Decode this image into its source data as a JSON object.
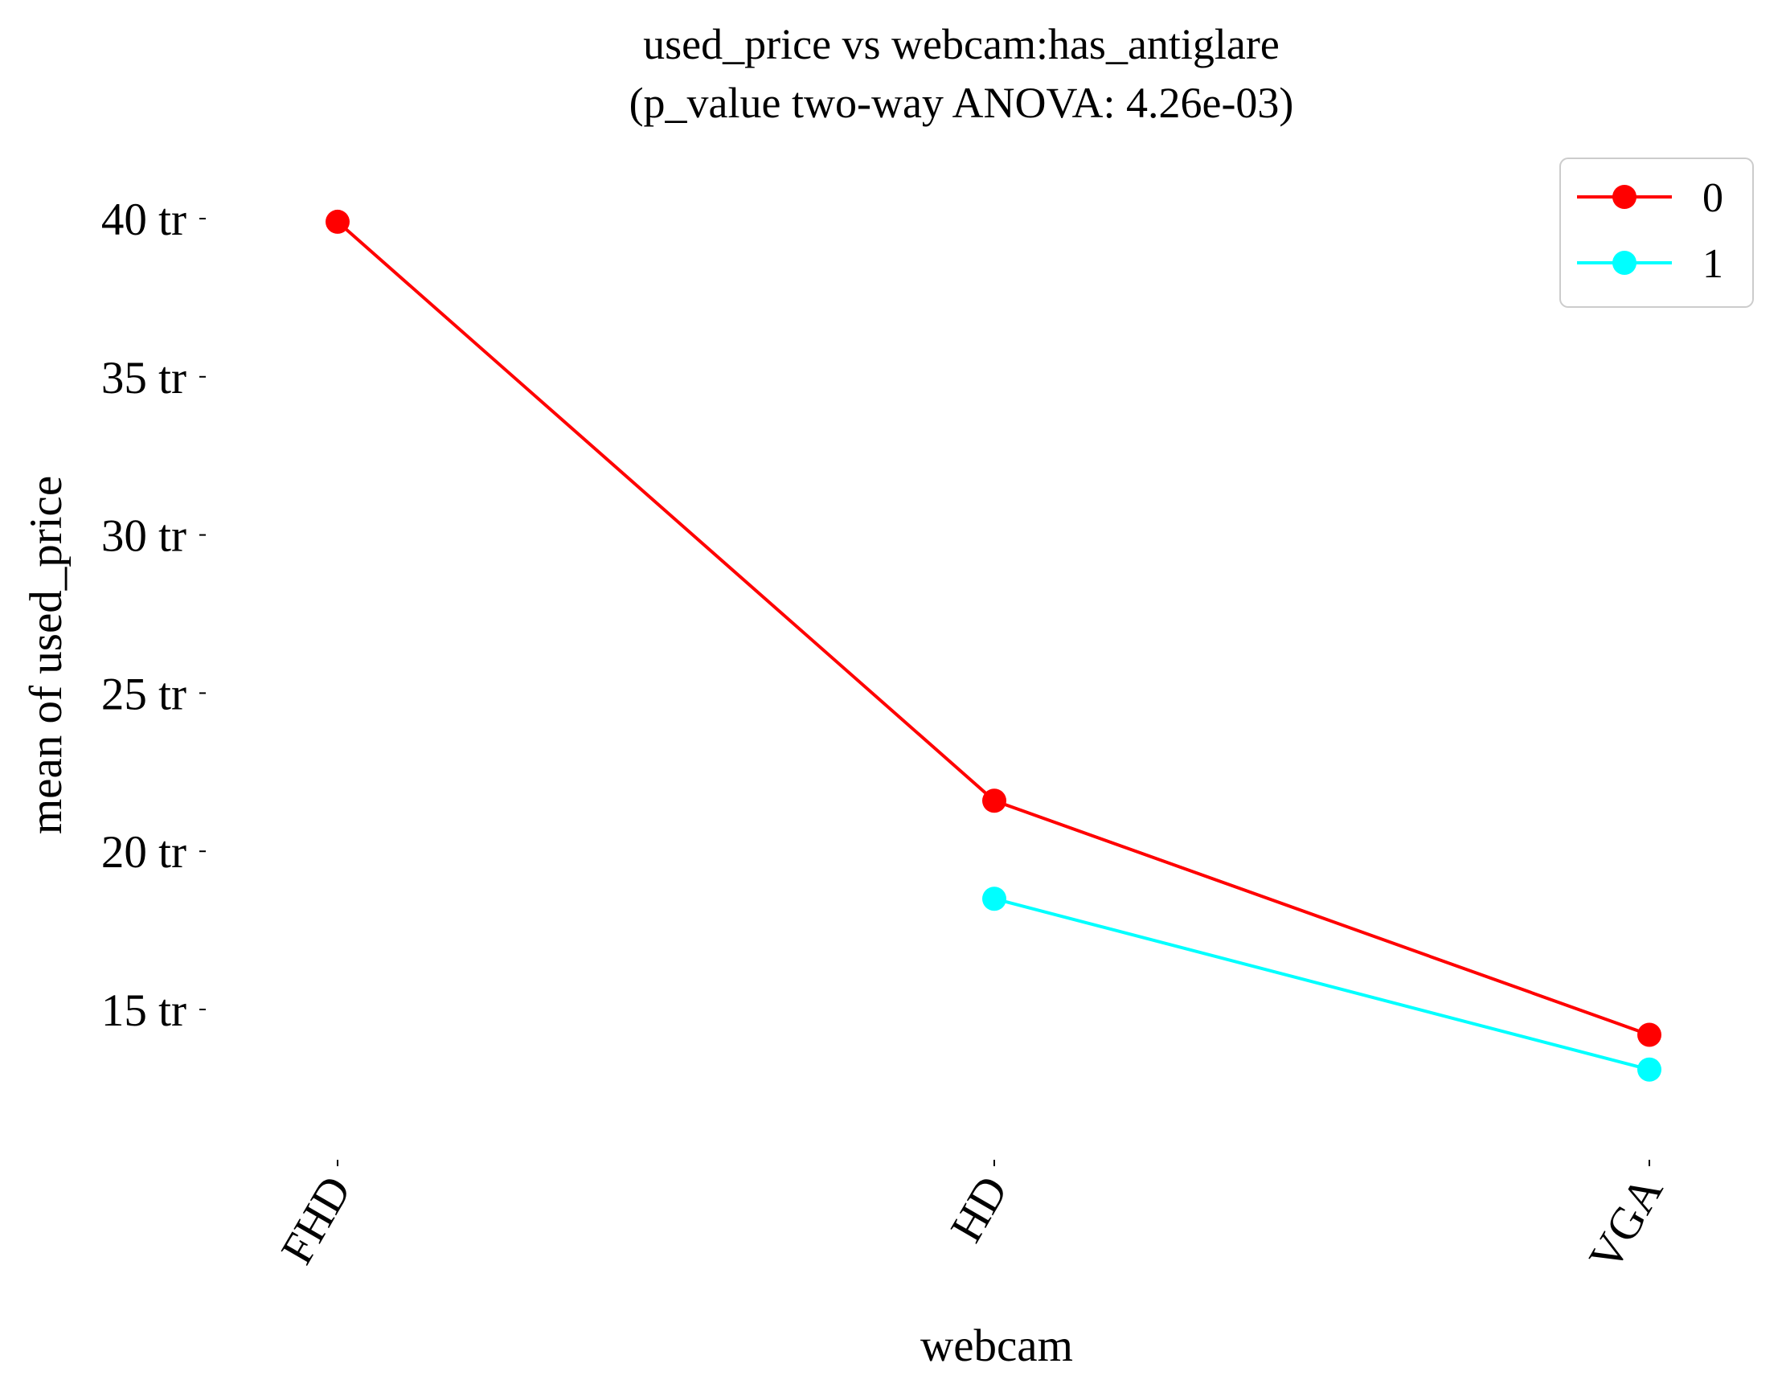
{
  "chart_data": {
    "type": "line",
    "title": "used_price vs webcam:has_antiglare",
    "subtitle": "(p_value two-way ANOVA: 4.26e-03)",
    "xlabel": "webcam",
    "ylabel": "mean of used_price",
    "categories": [
      "FHD",
      "HD",
      "VGA"
    ],
    "y_ticks": [
      {
        "value": 15,
        "label": "15 tr"
      },
      {
        "value": 20,
        "label": "20 tr"
      },
      {
        "value": 25,
        "label": "25 tr"
      },
      {
        "value": 30,
        "label": "30 tr"
      },
      {
        "value": 35,
        "label": "35 tr"
      },
      {
        "value": 40,
        "label": "40 tr"
      }
    ],
    "ylim": [
      10.5,
      42
    ],
    "grid": false,
    "legend_position": "top-right",
    "series": [
      {
        "name": "0",
        "color": "#ff0000",
        "values": [
          39.9,
          21.6,
          14.2
        ]
      },
      {
        "name": "1",
        "color": "#00ffff",
        "values": [
          null,
          18.5,
          13.1
        ]
      }
    ]
  }
}
